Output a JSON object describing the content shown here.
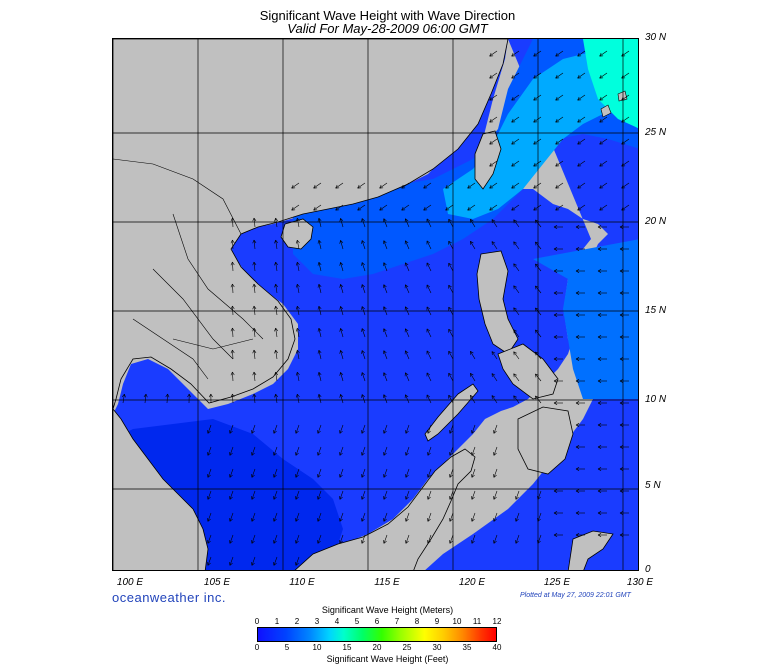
{
  "title": "Significant Wave Height with Wave Direction",
  "subtitle": "Valid For May-28-2009 06:00 GMT",
  "latitude_labels": [
    "30 N",
    "25 N",
    "20 N",
    "15 N",
    "10 N",
    "5 N",
    "0"
  ],
  "longitude_labels": [
    "100 E",
    "105 E",
    "110 E",
    "115 E",
    "120 E",
    "125 E",
    "130 E"
  ],
  "brand": "oceanweather inc.",
  "plotted": "Plotted at May 27, 2009 22:01 GMT",
  "legend": {
    "title_meters": "Significant Wave Height (Meters)",
    "title_feet": "Significant Wave Height (Feet)",
    "meter_ticks": [
      "0",
      "1",
      "2",
      "3",
      "4",
      "5",
      "6",
      "7",
      "8",
      "9",
      "10",
      "11",
      "12"
    ],
    "feet_ticks": [
      "0",
      "5",
      "10",
      "15",
      "20",
      "25",
      "30",
      "35",
      "40"
    ]
  },
  "colors": {
    "land": "#c0c0c0",
    "low_wave": "#1010ff",
    "mid_wave": "#0088ff",
    "high_wave": "#00ffcc",
    "grid": "#000000"
  },
  "map_extent": {
    "lon_min": 99,
    "lon_max": 130,
    "lat_min": 0,
    "lat_max": 30
  }
}
